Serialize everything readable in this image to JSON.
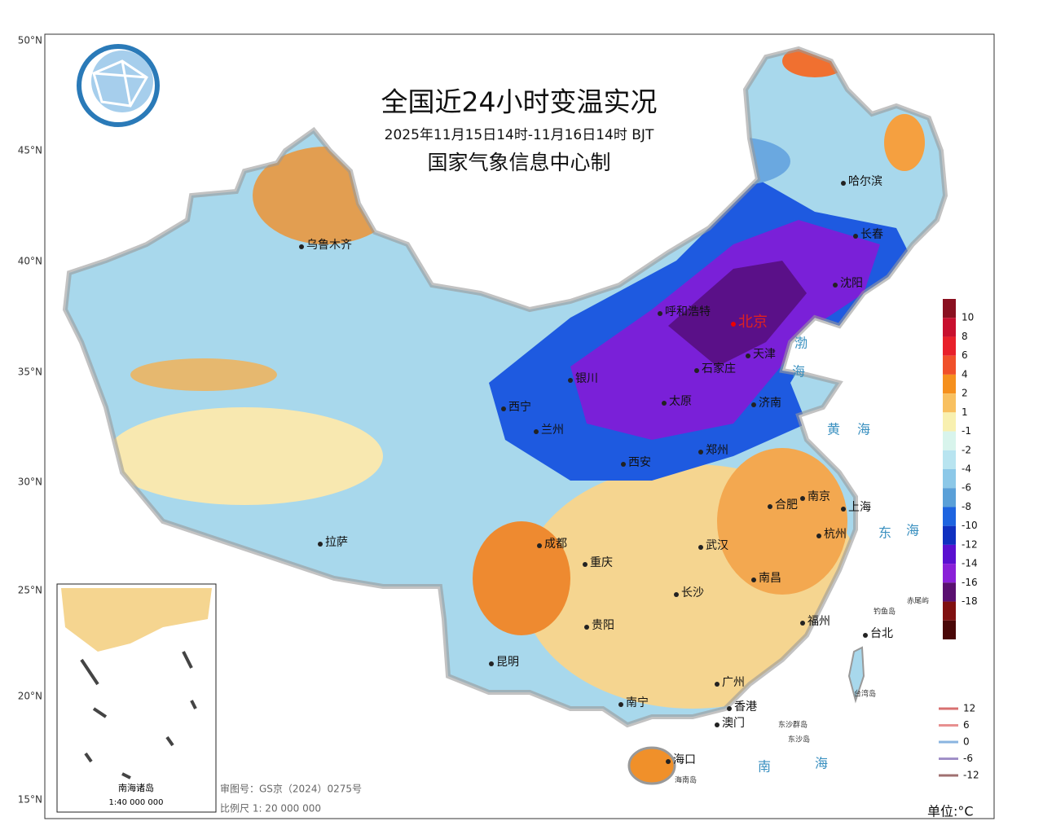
{
  "header": {
    "title": "全国近24小时变温实况",
    "subtitle": "2025年11月15日14时-11月16日14时 BJT",
    "agency": "国家气象信息中心制"
  },
  "latitudes": [
    "50°N",
    "45°N",
    "40°N",
    "35°N",
    "30°N",
    "25°N",
    "20°N",
    "15°N"
  ],
  "cities": [
    "乌鲁木齐",
    "哈尔滨",
    "长春",
    "沈阳",
    "呼和浩特",
    "北京",
    "天津",
    "石家庄",
    "银川",
    "太原",
    "济南",
    "西宁",
    "兰州",
    "西安",
    "郑州",
    "合肥",
    "南京",
    "上海",
    "拉萨",
    "成都",
    "武汉",
    "杭州",
    "重庆",
    "南昌",
    "长沙",
    "贵阳",
    "福州",
    "台北",
    "昆明",
    "广州",
    "南宁",
    "香港",
    "澳门",
    "海口"
  ],
  "seas": [
    "渤",
    "海",
    "黄",
    "海",
    "东",
    "海",
    "南",
    "海"
  ],
  "islands": [
    "钓鱼岛",
    "赤尾屿",
    "台湾岛",
    "海南岛",
    "东沙群岛",
    "东沙岛"
  ],
  "colorbar": {
    "labels": [
      10,
      8,
      6,
      4,
      2,
      1,
      -1,
      -2,
      -4,
      -6,
      -8,
      -10,
      -12,
      -14,
      -16,
      -18
    ],
    "colors": [
      "#8a1020",
      "#c8102e",
      "#e8202a",
      "#f0502a",
      "#f5901e",
      "#f8c060",
      "#f8f0b0",
      "#d8f4ec",
      "#b8e4f0",
      "#8cc8e8",
      "#5aa0d8",
      "#1e64e0",
      "#1030c0",
      "#5a10d0",
      "#8a20d8",
      "#5a1070",
      "#801010",
      "#4a0808"
    ]
  },
  "contour_legend": {
    "values": [
      12,
      6,
      0,
      -6,
      -12
    ],
    "colors": [
      "#d87070",
      "#e89090",
      "#8ab4e0",
      "#a090c8",
      "#a07070"
    ]
  },
  "inset": {
    "title": "南海诸岛",
    "scale": "1:40 000 000"
  },
  "footer": {
    "review": "审图号：GS京（2024）0275号",
    "scale": "比例尺 1: 20 000 000",
    "unit": "单位:°C"
  }
}
